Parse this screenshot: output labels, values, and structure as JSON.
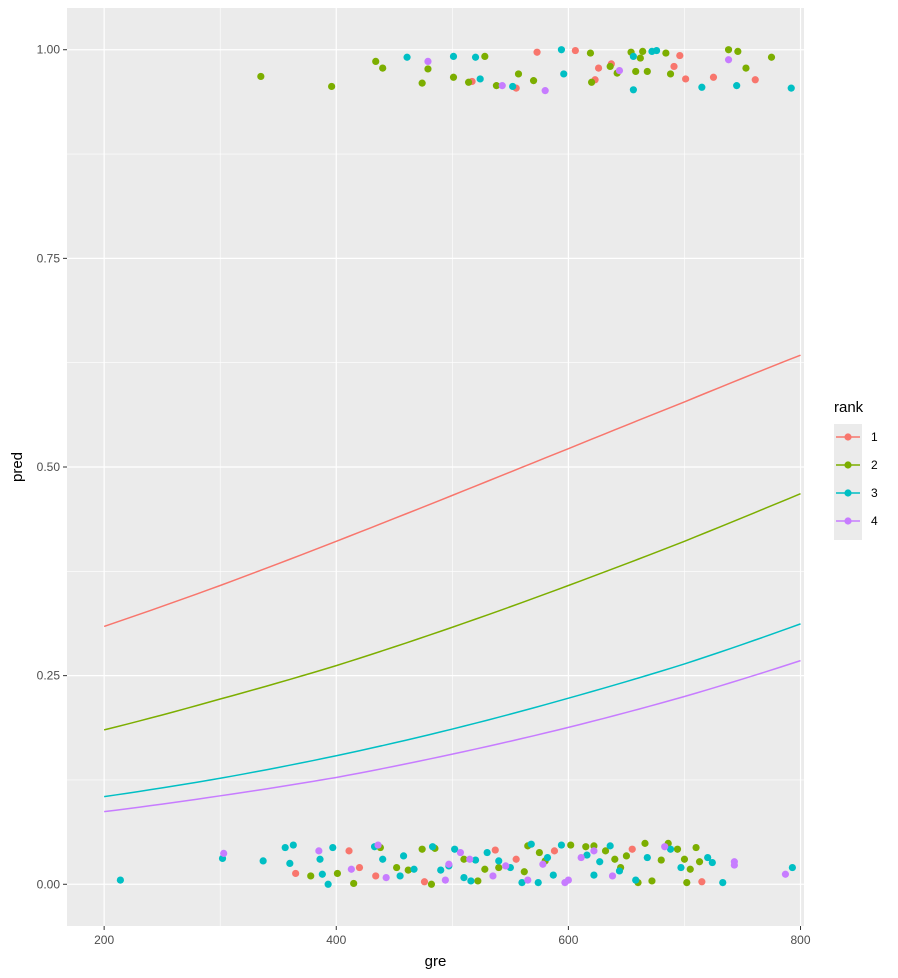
{
  "chart_data": {
    "type": "scatter",
    "title": "",
    "xlabel": "gre",
    "ylabel": "pred",
    "xlim": [
      168,
      803
    ],
    "ylim": [
      -0.05,
      1.05
    ],
    "x_ticks": [
      200,
      400,
      600,
      800
    ],
    "y_ticks": [
      0.0,
      0.25,
      0.5,
      0.75,
      1.0
    ],
    "x_tick_labels": [
      "200",
      "400",
      "600",
      "800"
    ],
    "y_tick_labels": [
      "0.00",
      "0.25",
      "0.50",
      "0.75",
      "1.00"
    ],
    "grid": true,
    "legend": {
      "title": "rank",
      "position": "right",
      "entries": [
        "1",
        "2",
        "3",
        "4"
      ]
    },
    "colors": {
      "1": "#F8766D",
      "2": "#7CAE00",
      "3": "#00BFC4",
      "4": "#C77CFF"
    },
    "panel_background": "#EBEBEB",
    "curves": [
      {
        "name": "1",
        "x": [
          200,
          300,
          400,
          500,
          600,
          700,
          800
        ],
        "y": [
          0.309,
          0.358,
          0.411,
          0.466,
          0.522,
          0.578,
          0.634
        ]
      },
      {
        "name": "2",
        "x": [
          200,
          300,
          400,
          500,
          600,
          700,
          800
        ],
        "y": [
          0.185,
          0.222,
          0.262,
          0.308,
          0.358,
          0.411,
          0.468
        ]
      },
      {
        "name": "3",
        "x": [
          200,
          300,
          400,
          500,
          600,
          700,
          800
        ],
        "y": [
          0.105,
          0.127,
          0.154,
          0.186,
          0.223,
          0.264,
          0.312
        ]
      },
      {
        "name": "4",
        "x": [
          200,
          300,
          400,
          500,
          600,
          700,
          800
        ],
        "y": [
          0.087,
          0.106,
          0.128,
          0.156,
          0.188,
          0.225,
          0.268
        ]
      }
    ],
    "series": [
      {
        "name": "1",
        "points": [
          [
            573,
            0.997
          ],
          [
            606,
            0.999
          ],
          [
            637,
            0.983
          ],
          [
            626,
            0.978
          ],
          [
            696,
            0.993
          ],
          [
            691,
            0.98
          ],
          [
            701,
            0.965
          ],
          [
            725,
            0.967
          ],
          [
            761,
            0.964
          ],
          [
            623,
            0.964
          ],
          [
            555,
            0.954
          ],
          [
            517,
            0.962
          ],
          [
            411,
            0.04
          ],
          [
            420,
            0.02
          ],
          [
            476,
            0.003
          ],
          [
            537,
            0.041
          ],
          [
            555,
            0.03
          ],
          [
            588,
            0.04
          ],
          [
            655,
            0.042
          ],
          [
            715,
            0.003
          ],
          [
            365,
            0.013
          ],
          [
            434,
            0.01
          ]
        ]
      },
      {
        "name": "2",
        "points": [
          [
            335,
            0.968
          ],
          [
            396,
            0.956
          ],
          [
            434,
            0.986
          ],
          [
            440,
            0.978
          ],
          [
            474,
            0.96
          ],
          [
            479,
            0.977
          ],
          [
            501,
            0.967
          ],
          [
            514,
            0.961
          ],
          [
            528,
            0.992
          ],
          [
            538,
            0.957
          ],
          [
            557,
            0.971
          ],
          [
            570,
            0.963
          ],
          [
            619,
            0.996
          ],
          [
            620,
            0.961
          ],
          [
            636,
            0.98
          ],
          [
            642,
            0.972
          ],
          [
            654,
            0.997
          ],
          [
            658,
            0.974
          ],
          [
            662,
            0.99
          ],
          [
            664,
            0.998
          ],
          [
            668,
            0.974
          ],
          [
            684,
            0.996
          ],
          [
            688,
            0.971
          ],
          [
            738,
            1.0
          ],
          [
            746,
            0.998
          ],
          [
            753,
            0.978
          ],
          [
            775,
            0.991
          ],
          [
            401,
            0.013
          ],
          [
            415,
            0.001
          ],
          [
            438,
            0.044
          ],
          [
            452,
            0.02
          ],
          [
            462,
            0.017
          ],
          [
            474,
            0.042
          ],
          [
            482,
            0.0
          ],
          [
            485,
            0.043
          ],
          [
            510,
            0.03
          ],
          [
            522,
            0.004
          ],
          [
            528,
            0.018
          ],
          [
            540,
            0.02
          ],
          [
            562,
            0.015
          ],
          [
            565,
            0.046
          ],
          [
            575,
            0.038
          ],
          [
            580,
            0.028
          ],
          [
            602,
            0.047
          ],
          [
            615,
            0.045
          ],
          [
            622,
            0.046
          ],
          [
            632,
            0.04
          ],
          [
            640,
            0.03
          ],
          [
            645,
            0.02
          ],
          [
            650,
            0.034
          ],
          [
            660,
            0.002
          ],
          [
            666,
            0.049
          ],
          [
            672,
            0.004
          ],
          [
            680,
            0.029
          ],
          [
            686,
            0.049
          ],
          [
            694,
            0.042
          ],
          [
            700,
            0.03
          ],
          [
            702,
            0.002
          ],
          [
            705,
            0.018
          ],
          [
            713,
            0.027
          ],
          [
            710,
            0.044
          ],
          [
            378,
            0.01
          ]
        ]
      },
      {
        "name": "3",
        "points": [
          [
            461,
            0.991
          ],
          [
            501,
            0.992
          ],
          [
            520,
            0.991
          ],
          [
            524,
            0.965
          ],
          [
            552,
            0.956
          ],
          [
            594,
            1.0
          ],
          [
            596,
            0.971
          ],
          [
            656,
            0.992
          ],
          [
            656,
            0.952
          ],
          [
            672,
            0.998
          ],
          [
            676,
            0.999
          ],
          [
            715,
            0.955
          ],
          [
            745,
            0.957
          ],
          [
            792,
            0.954
          ],
          [
            214,
            0.005
          ],
          [
            302,
            0.031
          ],
          [
            337,
            0.028
          ],
          [
            356,
            0.044
          ],
          [
            363,
            0.047
          ],
          [
            360,
            0.025
          ],
          [
            386,
            0.03
          ],
          [
            388,
            0.012
          ],
          [
            393,
            0.0
          ],
          [
            397,
            0.044
          ],
          [
            433,
            0.045
          ],
          [
            440,
            0.03
          ],
          [
            455,
            0.01
          ],
          [
            458,
            0.034
          ],
          [
            467,
            0.018
          ],
          [
            483,
            0.045
          ],
          [
            490,
            0.017
          ],
          [
            497,
            0.022
          ],
          [
            502,
            0.042
          ],
          [
            510,
            0.008
          ],
          [
            516,
            0.004
          ],
          [
            520,
            0.029
          ],
          [
            530,
            0.038
          ],
          [
            540,
            0.028
          ],
          [
            550,
            0.02
          ],
          [
            560,
            0.002
          ],
          [
            568,
            0.048
          ],
          [
            574,
            0.002
          ],
          [
            582,
            0.032
          ],
          [
            587,
            0.011
          ],
          [
            594,
            0.047
          ],
          [
            616,
            0.035
          ],
          [
            622,
            0.011
          ],
          [
            627,
            0.027
          ],
          [
            636,
            0.046
          ],
          [
            644,
            0.016
          ],
          [
            658,
            0.005
          ],
          [
            668,
            0.032
          ],
          [
            688,
            0.042
          ],
          [
            697,
            0.02
          ],
          [
            720,
            0.032
          ],
          [
            724,
            0.026
          ],
          [
            733,
            0.002
          ],
          [
            793,
            0.02
          ]
        ]
      },
      {
        "name": "4",
        "points": [
          [
            479,
            0.986
          ],
          [
            543,
            0.957
          ],
          [
            580,
            0.951
          ],
          [
            644,
            0.975
          ],
          [
            738,
            0.988
          ],
          [
            303,
            0.037
          ],
          [
            385,
            0.04
          ],
          [
            413,
            0.018
          ],
          [
            436,
            0.047
          ],
          [
            443,
            0.008
          ],
          [
            494,
            0.005
          ],
          [
            497,
            0.024
          ],
          [
            507,
            0.038
          ],
          [
            515,
            0.03
          ],
          [
            535,
            0.01
          ],
          [
            546,
            0.022
          ],
          [
            565,
            0.005
          ],
          [
            578,
            0.024
          ],
          [
            597,
            0.002
          ],
          [
            600,
            0.005
          ],
          [
            611,
            0.032
          ],
          [
            622,
            0.04
          ],
          [
            638,
            0.01
          ],
          [
            683,
            0.045
          ],
          [
            743,
            0.027
          ],
          [
            743,
            0.023
          ],
          [
            787,
            0.012
          ]
        ]
      }
    ]
  }
}
